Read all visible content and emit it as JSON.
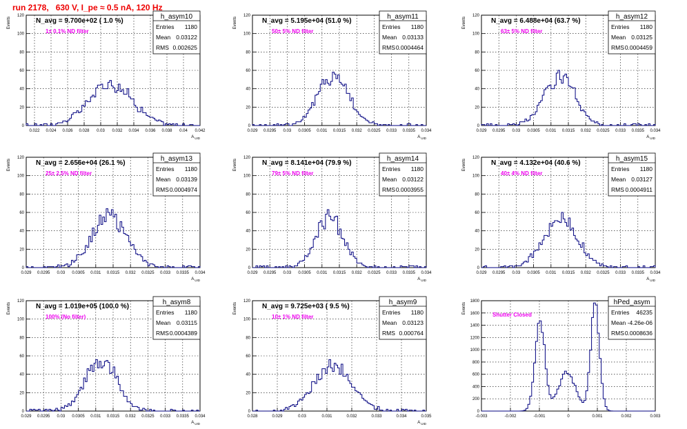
{
  "page": {
    "title": "run 2178,   630 V, I_pe ≈ 0.5 nA, 120 Hz"
  },
  "colors": {
    "title": "#ee0000",
    "annotation": "#ee00ee",
    "histogram": "#00007f",
    "grid": "#000000"
  },
  "chart_data": [
    {
      "type": "bar",
      "name": "h_asym10",
      "navg": "N_avg = 9.700e+02 ( 1.0 %)",
      "filter": "1± 0.1% ND filter",
      "stats": [
        [
          "Entries",
          "1180"
        ],
        [
          "Mean",
          "0.03122"
        ],
        [
          "RMS",
          "0.002625"
        ]
      ],
      "ylabel": "Events",
      "xlabel": "A_UID",
      "xlim": [
        0.021,
        0.042
      ],
      "ylim": [
        0,
        120
      ],
      "xticks": [
        0.022,
        0.024,
        0.026,
        0.028,
        0.03,
        0.032,
        0.034,
        0.036,
        0.038,
        0.04,
        0.042
      ],
      "xtick_labels": [
        "0.022",
        "0.024",
        "0.026",
        "0.028",
        "0.03",
        "0.032",
        "0.034",
        "0.036",
        "0.038",
        "0.04",
        "0.042"
      ],
      "yticks": [
        0,
        20,
        40,
        60,
        80,
        100,
        120
      ],
      "mean": 0.03122,
      "rms": 0.002625,
      "peak": 46,
      "shape": "gauss"
    },
    {
      "type": "bar",
      "name": "h_asym11",
      "navg": "N_avg = 5.195e+04 (51.0 %)",
      "filter": "50± 5% ND filter",
      "stats": [
        [
          "Entries",
          "1180"
        ],
        [
          "Mean",
          "0.03133"
        ],
        [
          "RMS",
          "0.0004464"
        ]
      ],
      "ylabel": "Events",
      "xlabel": "A_UID",
      "xlim": [
        0.029,
        0.034
      ],
      "ylim": [
        0,
        120
      ],
      "xticks": [
        0.029,
        0.0295,
        0.03,
        0.0305,
        0.031,
        0.0315,
        0.032,
        0.0325,
        0.033,
        0.0335,
        0.034
      ],
      "xtick_labels": [
        "0.029",
        "0.0295",
        "0.03",
        "0.0305",
        "0.031",
        "0.0315",
        "0.032",
        "0.0325",
        "0.033",
        "0.0335",
        "0.034"
      ],
      "yticks": [
        0,
        20,
        40,
        60,
        80,
        100,
        120
      ],
      "mean": 0.03133,
      "rms": 0.0004464,
      "peak": 55,
      "shape": "gauss"
    },
    {
      "type": "bar",
      "name": "h_asym12",
      "navg": "N_avg = 6.488e+04 (63.7 %)",
      "filter": "63± 5% ND filter",
      "stats": [
        [
          "Entries",
          "1180"
        ],
        [
          "Mean",
          "0.03125"
        ],
        [
          "RMS",
          "0.0004459"
        ]
      ],
      "ylabel": "Events",
      "xlabel": "A_UID",
      "xlim": [
        0.029,
        0.034
      ],
      "ylim": [
        0,
        120
      ],
      "xticks": [
        0.029,
        0.0295,
        0.03,
        0.0305,
        0.031,
        0.0315,
        0.032,
        0.0325,
        0.033,
        0.0335,
        0.034
      ],
      "xtick_labels": [
        "0.029",
        "0.0295",
        "0.03",
        "0.0305",
        "0.031",
        "0.0315",
        "0.032",
        "0.0325",
        "0.033",
        "0.0335",
        "0.034"
      ],
      "yticks": [
        0,
        20,
        40,
        60,
        80,
        100,
        120
      ],
      "mean": 0.03125,
      "rms": 0.0004459,
      "peak": 54,
      "shape": "gauss"
    },
    {
      "type": "bar",
      "name": "h_asym13",
      "navg": "N_avg = 2.656e+04 (26.1 %)",
      "filter": "25± 2.5% ND filter",
      "stats": [
        [
          "Entries",
          "1180"
        ],
        [
          "Mean",
          "0.03139"
        ],
        [
          "RMS",
          "0.0004974"
        ]
      ],
      "ylabel": "Events",
      "xlabel": "A_UID",
      "xlim": [
        0.029,
        0.034
      ],
      "ylim": [
        0,
        120
      ],
      "xticks": [
        0.029,
        0.0295,
        0.03,
        0.0305,
        0.031,
        0.0315,
        0.032,
        0.0325,
        0.033,
        0.0335,
        0.034
      ],
      "xtick_labels": [
        "0.029",
        "0.0295",
        "0.03",
        "0.0305",
        "0.031",
        "0.0315",
        "0.032",
        "0.0325",
        "0.033",
        "0.0335",
        "0.034"
      ],
      "yticks": [
        0,
        20,
        40,
        60,
        80,
        100,
        120
      ],
      "mean": 0.03139,
      "rms": 0.0004974,
      "peak": 57,
      "shape": "gauss"
    },
    {
      "type": "bar",
      "name": "h_asym14",
      "navg": "N_avg = 8.141e+04 (79.9 %)",
      "filter": "79± 5% ND filter",
      "stats": [
        [
          "Entries",
          "1180"
        ],
        [
          "Mean",
          "0.03122"
        ],
        [
          "RMS",
          "0.0003955"
        ]
      ],
      "ylabel": "Events",
      "xlabel": "A_UID",
      "xlim": [
        0.029,
        0.034
      ],
      "ylim": [
        0,
        120
      ],
      "xticks": [
        0.029,
        0.0295,
        0.03,
        0.0305,
        0.031,
        0.0315,
        0.032,
        0.0325,
        0.033,
        0.0335,
        0.034
      ],
      "xtick_labels": [
        "0.029",
        "0.0295",
        "0.03",
        "0.0305",
        "0.031",
        "0.0315",
        "0.032",
        "0.0325",
        "0.033",
        "0.0335",
        "0.034"
      ],
      "yticks": [
        0,
        20,
        40,
        60,
        80,
        100,
        120
      ],
      "mean": 0.03122,
      "rms": 0.0003955,
      "peak": 55,
      "shape": "gauss"
    },
    {
      "type": "bar",
      "name": "h_asym15",
      "navg": "N_avg = 4.132e+04 (40.6 %)",
      "filter": "40± 4% ND filter",
      "stats": [
        [
          "Entries",
          "1180"
        ],
        [
          "Mean",
          "0.03127"
        ],
        [
          "RMS",
          "0.0004911"
        ]
      ],
      "ylabel": "Events",
      "xlabel": "A_UID",
      "xlim": [
        0.029,
        0.034
      ],
      "ylim": [
        0,
        120
      ],
      "xticks": [
        0.029,
        0.0295,
        0.03,
        0.0305,
        0.031,
        0.0315,
        0.032,
        0.0325,
        0.033,
        0.0335,
        0.034
      ],
      "xtick_labels": [
        "0.029",
        "0.0295",
        "0.03",
        "0.0305",
        "0.031",
        "0.0315",
        "0.032",
        "0.0325",
        "0.033",
        "0.0335",
        "0.034"
      ],
      "yticks": [
        0,
        20,
        40,
        60,
        80,
        100,
        120
      ],
      "mean": 0.03127,
      "rms": 0.0004911,
      "peak": 53,
      "shape": "gauss"
    },
    {
      "type": "bar",
      "name": "h_asym8",
      "navg": "N_avg = 1.019e+05 (100.0 %)",
      "filter": "100% (No filter)",
      "stats": [
        [
          "Entries",
          "1180"
        ],
        [
          "Mean",
          "0.03115"
        ],
        [
          "RMS",
          "0.0004389"
        ]
      ],
      "ylabel": "Events",
      "xlabel": "A_UID",
      "xlim": [
        0.029,
        0.034
      ],
      "ylim": [
        0,
        120
      ],
      "xticks": [
        0.029,
        0.0295,
        0.03,
        0.0305,
        0.031,
        0.0315,
        0.032,
        0.0325,
        0.033,
        0.0335,
        0.034
      ],
      "xtick_labels": [
        "0.029",
        "0.0295",
        "0.03",
        "0.0305",
        "0.031",
        "0.0315",
        "0.032",
        "0.0325",
        "0.033",
        "0.0335",
        "0.034"
      ],
      "yticks": [
        0,
        20,
        40,
        60,
        80,
        100,
        120
      ],
      "mean": 0.03115,
      "rms": 0.0004389,
      "peak": 58,
      "shape": "gauss"
    },
    {
      "type": "bar",
      "name": "h_asym9",
      "navg": "N_avg = 9.725e+03 ( 9.5 %)",
      "filter": "10± 1% ND filter",
      "stats": [
        [
          "Entries",
          "1180"
        ],
        [
          "Mean",
          "0.03123"
        ],
        [
          "RMS",
          "0.000764"
        ]
      ],
      "ylabel": "Events",
      "xlabel": "A_UID",
      "xlim": [
        0.028,
        0.035
      ],
      "ylim": [
        0,
        120
      ],
      "xticks": [
        0.028,
        0.029,
        0.03,
        0.031,
        0.032,
        0.033,
        0.034,
        0.035
      ],
      "xtick_labels": [
        "0.028",
        "0.029",
        "0.03",
        "0.031",
        "0.032",
        "0.033",
        "0.034",
        "0.035"
      ],
      "yticks": [
        0,
        20,
        40,
        60,
        80,
        100,
        120
      ],
      "mean": 0.03123,
      "rms": 0.000764,
      "peak": 50,
      "shape": "gauss"
    },
    {
      "type": "bar",
      "name": "hPed_asym",
      "navg": "",
      "filter": "Shutter Closed",
      "stats": [
        [
          "Entries",
          "46235"
        ],
        [
          "Mean",
          "-4.26e-06"
        ],
        [
          "RMS",
          "0.0008636"
        ]
      ],
      "ylabel": "Events",
      "xlabel": "",
      "xlim": [
        -0.003,
        0.003
      ],
      "ylim": [
        0,
        1800
      ],
      "xticks": [
        -0.003,
        -0.002,
        -0.001,
        0,
        0.001,
        0.002,
        0.003
      ],
      "xtick_labels": [
        "-0.003",
        "-0.002",
        "-0.001",
        "0",
        "0.001",
        "0.002",
        "0.003"
      ],
      "yticks": [
        0,
        200,
        400,
        600,
        800,
        1000,
        1200,
        1400,
        1600,
        1800
      ],
      "peaks": [
        [
          -0.00098,
          0.00017,
          1500
        ],
        [
          0.00092,
          0.00015,
          1720
        ],
        [
          -5e-05,
          0.0003,
          620
        ]
      ],
      "shape": "multi"
    }
  ]
}
